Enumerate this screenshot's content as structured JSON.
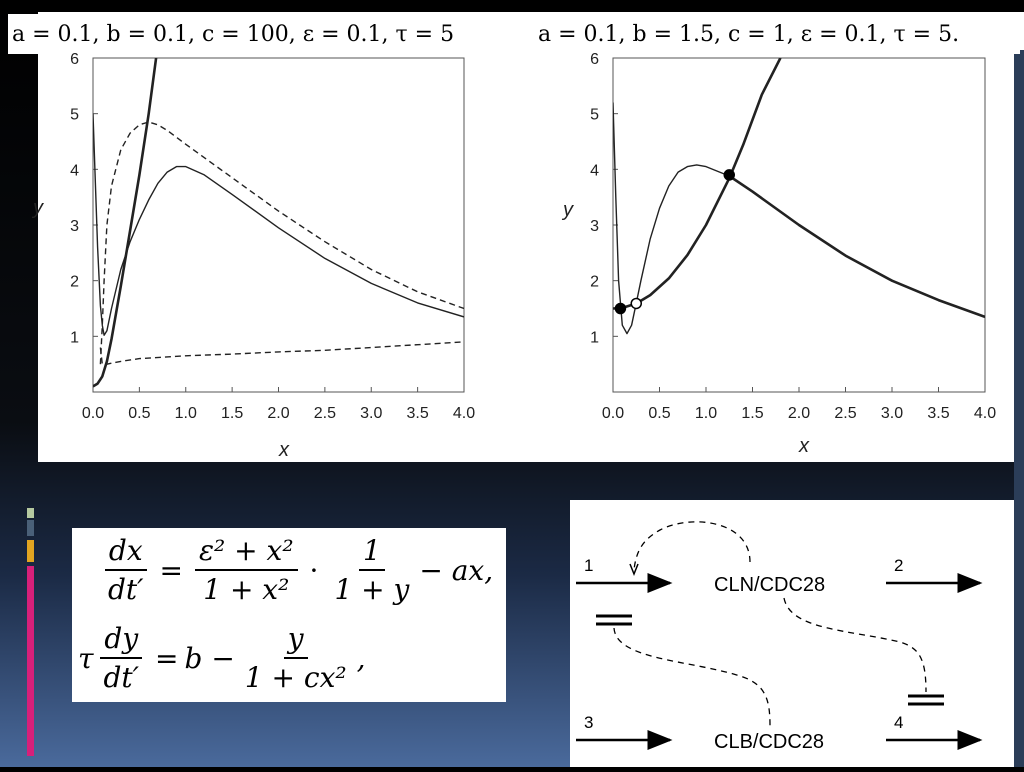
{
  "chart_data": [
    {
      "type": "line",
      "title": "a = 0.1, b = 0.1, c = 100, ε = 0.1, τ = 5",
      "xlabel": "x",
      "ylabel": "y",
      "xlim": [
        0,
        4
      ],
      "ylim": [
        0,
        6
      ],
      "xticks": [
        "0.0",
        "0.5",
        "1.0",
        "1.5",
        "2.0",
        "2.5",
        "3.0",
        "3.5",
        "4.0"
      ],
      "yticks": [
        "1",
        "2",
        "3",
        "4",
        "5",
        "6"
      ],
      "series": [
        {
          "style": "thick-solid",
          "x": [
            0.0,
            0.05,
            0.1,
            0.15,
            0.2,
            0.3,
            0.4,
            0.5,
            0.6,
            0.68
          ],
          "y": [
            0.1,
            0.15,
            0.28,
            0.55,
            0.95,
            1.9,
            2.9,
            3.9,
            5.0,
            6.0
          ]
        },
        {
          "style": "thin-solid",
          "x": [
            0.0,
            0.02,
            0.05,
            0.08,
            0.1,
            0.12,
            0.15,
            0.2,
            0.3,
            0.4,
            0.5,
            0.6,
            0.7,
            0.8,
            0.9,
            1.0,
            1.2,
            1.5,
            2.0,
            2.5,
            3.0,
            3.5,
            4.0
          ],
          "y": [
            5.0,
            4.0,
            2.6,
            1.55,
            1.2,
            1.02,
            1.1,
            1.5,
            2.2,
            2.7,
            3.1,
            3.45,
            3.75,
            3.95,
            4.05,
            4.05,
            3.9,
            3.55,
            2.95,
            2.4,
            1.95,
            1.6,
            1.35
          ]
        },
        {
          "style": "dashed",
          "x": [
            0.08,
            0.1,
            0.12,
            0.15,
            0.2,
            0.3,
            0.4,
            0.5,
            0.6,
            0.7,
            0.8,
            1.0,
            1.5,
            2.0,
            2.5,
            3.0,
            3.5,
            4.0
          ],
          "y": [
            0.5,
            1.2,
            2.0,
            3.0,
            3.7,
            4.35,
            4.65,
            4.8,
            4.85,
            4.8,
            4.7,
            4.45,
            3.85,
            3.25,
            2.7,
            2.2,
            1.8,
            1.5
          ]
        },
        {
          "style": "dashed",
          "x": [
            0.08,
            0.1,
            0.15,
            0.2,
            0.3,
            0.5,
            1.0,
            1.5,
            2.0,
            2.5,
            3.0,
            3.5,
            4.0
          ],
          "y": [
            0.8,
            0.5,
            0.5,
            0.52,
            0.55,
            0.6,
            0.65,
            0.68,
            0.72,
            0.75,
            0.8,
            0.85,
            0.9
          ]
        }
      ],
      "points": []
    },
    {
      "type": "line",
      "title": "a = 0.1, b = 1.5, c = 1, ε = 0.1, τ = 5.",
      "xlabel": "x",
      "ylabel": "y",
      "xlim": [
        0,
        4
      ],
      "ylim": [
        0,
        6
      ],
      "xticks": [
        "0.0",
        "0.5",
        "1.0",
        "1.5",
        "2.0",
        "2.5",
        "3.0",
        "3.5",
        "4.0"
      ],
      "yticks": [
        "1",
        "2",
        "3",
        "4",
        "5",
        "6"
      ],
      "series": [
        {
          "style": "thick-solid",
          "x": [
            0.0,
            0.1,
            0.25,
            0.4,
            0.6,
            0.8,
            1.0,
            1.25,
            1.4,
            1.6,
            1.8
          ],
          "y": [
            1.5,
            1.51,
            1.59,
            1.74,
            2.04,
            2.46,
            3.0,
            3.84,
            4.44,
            5.34,
            6.0
          ]
        },
        {
          "style": "thin-solid",
          "x": [
            0.0,
            0.03,
            0.06,
            0.1,
            0.15,
            0.2,
            0.25,
            0.3,
            0.4,
            0.5,
            0.6,
            0.7,
            0.8,
            0.9,
            1.0,
            1.1,
            1.25
          ],
          "y": [
            5.2,
            3.5,
            2.0,
            1.2,
            1.05,
            1.2,
            1.6,
            2.0,
            2.75,
            3.3,
            3.7,
            3.95,
            4.05,
            4.08,
            4.05,
            3.98,
            3.88
          ]
        },
        {
          "style": "thick-solid",
          "x": [
            1.25,
            1.5,
            2.0,
            2.5,
            3.0,
            3.5,
            4.0
          ],
          "y": [
            3.88,
            3.6,
            3.0,
            2.45,
            2.0,
            1.65,
            1.35
          ]
        }
      ],
      "points": [
        {
          "x": 0.08,
          "y": 1.5,
          "filled": true
        },
        {
          "x": 0.25,
          "y": 1.59,
          "filled": false
        },
        {
          "x": 1.25,
          "y": 3.9,
          "filled": true
        }
      ]
    }
  ],
  "equations": {
    "eq1": {
      "lhs_num": "dx",
      "lhs_den": "dt′",
      "eq": "=",
      "f1_num": "ε² + x²",
      "f1_den": "1 + x²",
      "dot": "·",
      "f2_num": "1",
      "f2_den": "1 + y",
      "tail": "− ax,"
    },
    "eq2": {
      "prefix": "τ",
      "lhs_num": "dy",
      "lhs_den": "dt′",
      "eq": "=",
      "mid": "b −",
      "f_num": "y",
      "f_den": "1 + cx²",
      "tail": ","
    }
  },
  "diagram": {
    "labels": {
      "cln": "CLN/CDC28",
      "clb": "CLB/CDC28",
      "n1": "1",
      "n2": "2",
      "n3": "3",
      "n4": "4"
    }
  }
}
